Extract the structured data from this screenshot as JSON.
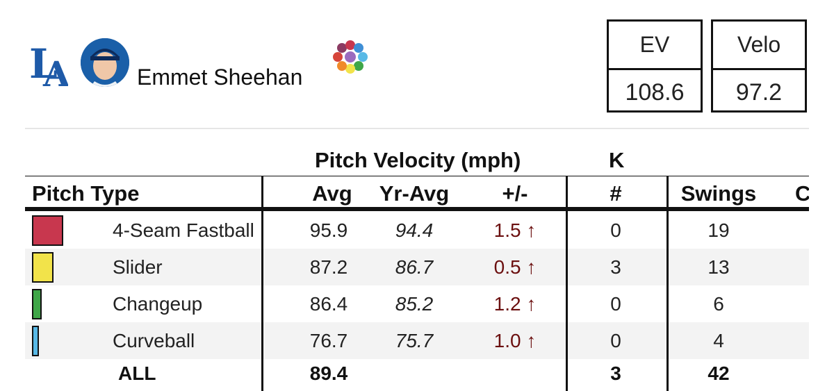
{
  "header": {
    "team_logo": "LA",
    "player_name": "Emmet Sheehan",
    "avatar_icon": "player-headshot-icon",
    "wheel_icon": "pitch-color-wheel-icon"
  },
  "stat_boxes": [
    {
      "label": "EV",
      "value": "108.6"
    },
    {
      "label": "Velo",
      "value": "97.2"
    }
  ],
  "table": {
    "group_headers": {
      "velocity": "Pitch Velocity (mph)",
      "k": "K"
    },
    "columns": {
      "pitch_type": "Pitch Type",
      "avg": "Avg",
      "yr_avg": "Yr-Avg",
      "diff": "+/-",
      "k_count": "#",
      "swings": "Swings",
      "cut": "C"
    },
    "rows": [
      {
        "pitch": "4-Seam Fastball",
        "color": "#c8374e",
        "share": 0.45,
        "avg": "95.9",
        "yr_avg": "94.4",
        "diff": "1.5 ↑",
        "k": "0",
        "swings": "19"
      },
      {
        "pitch": "Slider",
        "color": "#f2e34a",
        "share": 0.31,
        "avg": "87.2",
        "yr_avg": "86.7",
        "diff": "0.5 ↑",
        "k": "3",
        "swings": "13"
      },
      {
        "pitch": "Changeup",
        "color": "#3fa648",
        "share": 0.14,
        "avg": "86.4",
        "yr_avg": "85.2",
        "diff": "1.2 ↑",
        "k": "0",
        "swings": "6"
      },
      {
        "pitch": "Curveball",
        "color": "#58b9e6",
        "share": 0.1,
        "avg": "76.7",
        "yr_avg": "75.7",
        "diff": "1.0 ↑",
        "k": "0",
        "swings": "4"
      }
    ],
    "total": {
      "label": "ALL",
      "avg": "89.4",
      "k": "3",
      "swings": "42"
    }
  }
}
